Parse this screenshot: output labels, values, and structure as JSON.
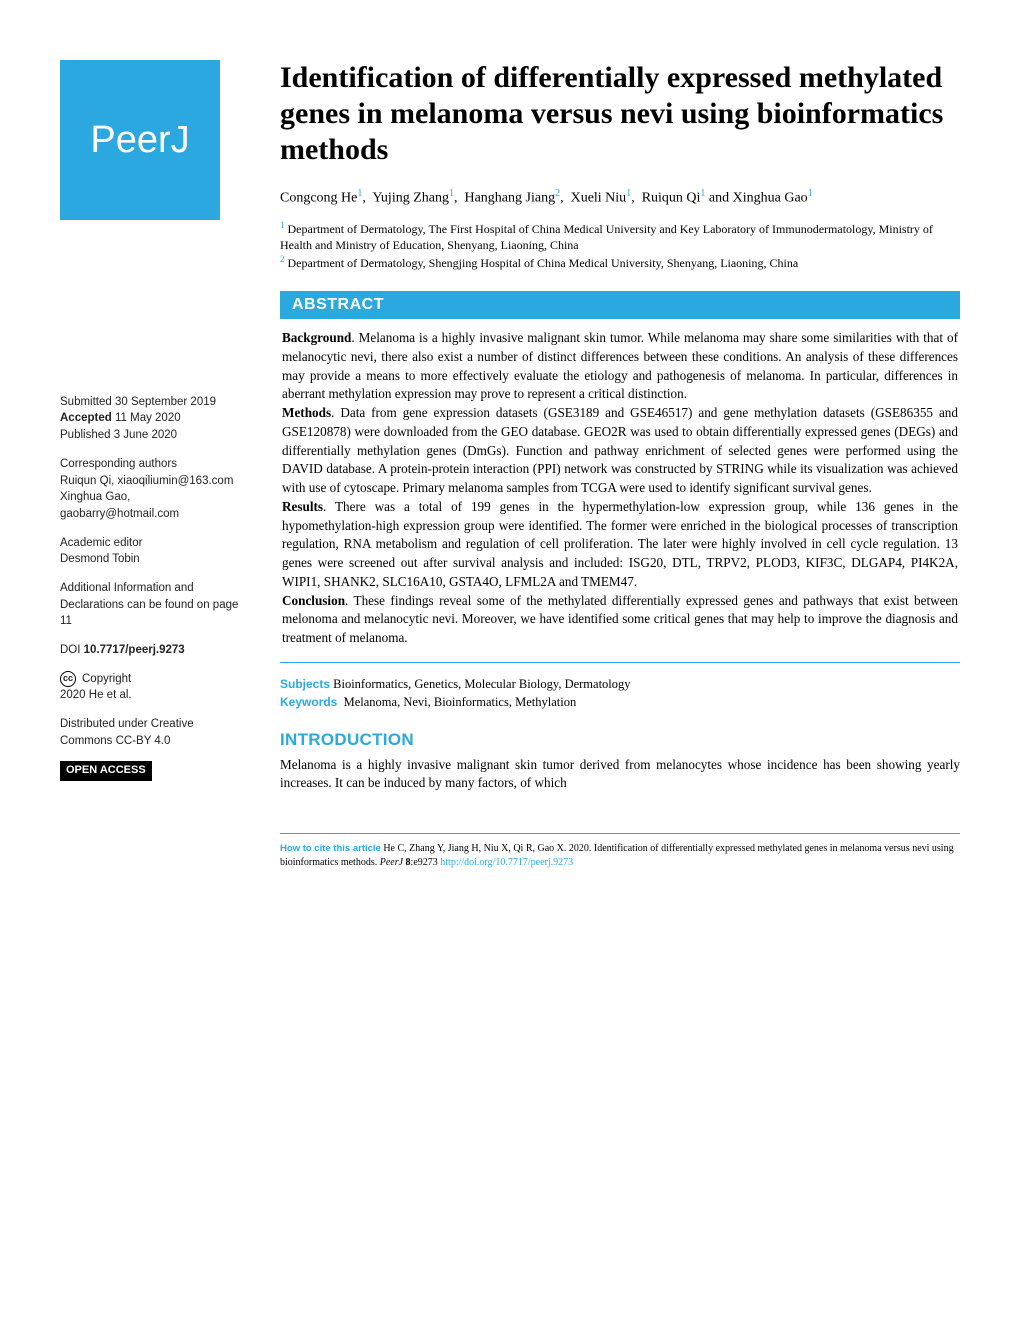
{
  "journal": {
    "logo_text": "PeerJ",
    "logo_bg": "#2ba8e0",
    "logo_fg": "#ffffff"
  },
  "title": "Identification of differentially expressed methylated genes in melanoma versus nevi using bioinformatics methods",
  "authors": [
    {
      "name": "Congcong He",
      "affil": "1"
    },
    {
      "name": "Yujing Zhang",
      "affil": "1"
    },
    {
      "name": "Hanghang Jiang",
      "affil": "2"
    },
    {
      "name": "Xueli Niu",
      "affil": "1"
    },
    {
      "name": "Ruiqun Qi",
      "affil": "1"
    },
    {
      "name": "Xinghua Gao",
      "affil": "1"
    }
  ],
  "affiliations": {
    "1": "Department of Dermatology, The First Hospital of China Medical University and Key Laboratory of Immunodermatology, Ministry of Health and Ministry of Education, Shenyang, Liaoning, China",
    "2": "Department of Dermatology, Shengjing Hospital of China Medical University, Shenyang, Liaoning, China"
  },
  "abstract": {
    "header": "ABSTRACT",
    "background_label": "Background",
    "background": ". Melanoma is a highly invasive malignant skin tumor. While melanoma may share some similarities with that of melanocytic nevi, there also exist a number of distinct differences between these conditions. An analysis of these differences may provide a means to more effectively evaluate the etiology and pathogenesis of melanoma. In particular, differences in aberrant methylation expression may prove to represent a critical distinction.",
    "methods_label": "Methods",
    "methods": ". Data from gene expression datasets (GSE3189 and GSE46517) and gene methylation datasets (GSE86355 and GSE120878) were downloaded from the GEO database. GEO2R was used to obtain differentially expressed genes (DEGs) and differentially methylation genes (DmGs). Function and pathway enrichment of selected genes were performed using the DAVID database. A protein-protein interaction (PPI) network was constructed by STRING while its visualization was achieved with use of cytoscape. Primary melanoma samples from TCGA were used to identify significant survival genes.",
    "results_label": "Results",
    "results": ". There was a total of 199 genes in the hypermethylation-low expression group, while 136 genes in the hypomethylation-high expression group were identified. The former were enriched in the biological processes of transcription regulation, RNA metabolism and regulation of cell proliferation. The later were highly involved in cell cycle regulation. 13 genes were screened out after survival analysis and included: ISG20, DTL, TRPV2, PLOD3, KIF3C, DLGAP4, PI4K2A, WIPI1, SHANK2, SLC16A10, GSTA4O, LFML2A and TMEM47.",
    "conclusion_label": "Conclusion",
    "conclusion": ". These findings reveal some of the methylated differentially expressed genes and pathways that exist between melonoma and melanocytic nevi. Moreover, we have identified some critical genes that may help to improve the diagnosis and treatment of melanoma."
  },
  "subjects": {
    "label": "Subjects",
    "text": "Bioinformatics, Genetics, Molecular Biology, Dermatology"
  },
  "keywords": {
    "label": "Keywords",
    "text": "Melanoma, Nevi, Bioinformatics, Methylation"
  },
  "introduction": {
    "header": "INTRODUCTION",
    "text": "Melanoma is a highly invasive malignant skin tumor derived from melanocytes whose incidence has been showing yearly increases. It can be induced by many factors, of which"
  },
  "meta": {
    "submitted_label": "Submitted",
    "submitted": "30 September 2019",
    "accepted_label": "Accepted",
    "accepted": "11 May 2020",
    "published_label": "Published",
    "published": "3 June 2020",
    "corresponding_label": "Corresponding authors",
    "corresponding1": "Ruiqun Qi, xiaoqiliumin@163.com",
    "corresponding2": "Xinghua Gao, gaobarry@hotmail.com",
    "editor_label": "Academic editor",
    "editor": "Desmond Tobin",
    "addinfo": "Additional Information and Declarations can be found on page 11",
    "doi_label": "DOI",
    "doi": "10.7717/peerj.9273",
    "copyright_label": "Copyright",
    "copyright": "2020 He et al.",
    "distributed": "Distributed under Creative Commons CC-BY 4.0",
    "open_access": "OPEN ACCESS"
  },
  "citation": {
    "label": "How to cite this article",
    "text1": "He C, Zhang Y, Jiang H, Niu X, Qi R, Gao X. 2020. Identification of differentially expressed methylated genes in melanoma versus nevi using bioinformatics methods. ",
    "journal": "PeerJ",
    "vol": "8",
    "id": ":e9273 ",
    "doi_url": "http://doi.org/10.7717/peerj.9273"
  }
}
